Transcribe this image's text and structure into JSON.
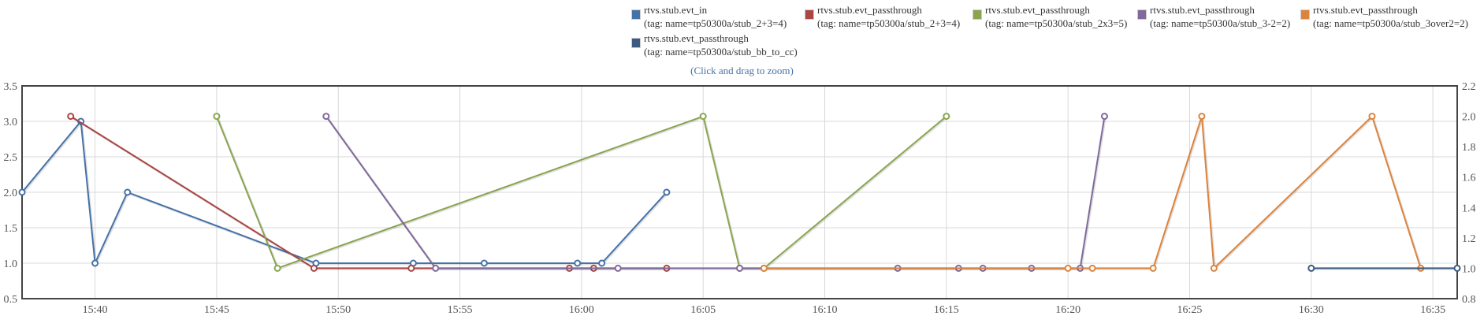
{
  "hint": "(Click and drag to zoom)",
  "chart_data": {
    "type": "line",
    "title": "",
    "xlabel": "",
    "ylabel": "",
    "x_range": [
      "15:37",
      "16:36"
    ],
    "x_ticks": [
      "15:40",
      "15:45",
      "15:50",
      "15:55",
      "16:00",
      "16:05",
      "16:10",
      "16:15",
      "16:20",
      "16:25",
      "16:30",
      "16:35"
    ],
    "y_left": {
      "range": [
        0.5,
        3.5
      ],
      "ticks": [
        "0.5",
        "1.0",
        "1.5",
        "2.0",
        "2.5",
        "3.0",
        "3.5"
      ]
    },
    "y_right": {
      "range": [
        0.8,
        2.2
      ],
      "ticks": [
        "0.8",
        "1.0",
        "1.2",
        "1.4",
        "1.6",
        "1.8",
        "2.0",
        "2.2"
      ]
    },
    "grid": true,
    "legend_placement": "top-right",
    "series": [
      {
        "name": "rtvs.stub.evt_in",
        "tag": "(tag: name=tp50300a/stub_2+3=4)",
        "color": "#4572A7",
        "axis": "left",
        "points": [
          [
            "15:37:00",
            2
          ],
          [
            "15:39:25",
            3
          ],
          [
            "15:40:00",
            1
          ],
          [
            "15:41:20",
            2
          ],
          [
            "15:49:05",
            1
          ],
          [
            "15:53:05",
            1
          ],
          [
            "15:56:00",
            1
          ],
          [
            "15:59:50",
            1
          ],
          [
            "16:00:50",
            1
          ],
          [
            "16:03:30",
            2
          ]
        ]
      },
      {
        "name": "rtvs.stub.evt_passthrough",
        "tag": "(tag: name=tp50300a/stub_2+3=4)",
        "color": "#AA4643",
        "axis": "right",
        "points": [
          [
            "15:39:00",
            2
          ],
          [
            "15:49:00",
            1
          ],
          [
            "15:53:00",
            1
          ],
          [
            "15:59:30",
            1
          ],
          [
            "16:00:30",
            1
          ],
          [
            "16:03:30",
            1
          ]
        ]
      },
      {
        "name": "rtvs.stub.evt_passthrough",
        "tag": "(tag: name=tp50300a/stub_2x3=5)",
        "color": "#89A54E",
        "axis": "right",
        "points": [
          [
            "15:45:00",
            2
          ],
          [
            "15:47:30",
            1
          ],
          [
            "16:05:00",
            2
          ],
          [
            "16:06:30",
            1
          ],
          [
            "16:07:30",
            1
          ],
          [
            "16:15:00",
            2
          ]
        ]
      },
      {
        "name": "rtvs.stub.evt_passthrough",
        "tag": "(tag: name=tp50300a/stub_3-2=2)",
        "color": "#80699B",
        "axis": "right",
        "points": [
          [
            "15:49:30",
            2
          ],
          [
            "15:54:00",
            1
          ],
          [
            "16:01:30",
            1
          ],
          [
            "16:06:30",
            1
          ],
          [
            "16:13:00",
            1
          ],
          [
            "16:15:30",
            1
          ],
          [
            "16:16:30",
            1
          ],
          [
            "16:18:30",
            1
          ],
          [
            "16:20:30",
            1
          ],
          [
            "16:21:30",
            2
          ]
        ]
      },
      {
        "name": "rtvs.stub.evt_passthrough",
        "tag": "(tag: name=tp50300a/stub_3over2=2)",
        "color": "#DB843D",
        "axis": "right",
        "points": [
          [
            "16:07:30",
            1
          ],
          [
            "16:20:00",
            1
          ],
          [
            "16:21:00",
            1
          ],
          [
            "16:23:30",
            1
          ],
          [
            "16:25:30",
            2
          ],
          [
            "16:26:00",
            1
          ],
          [
            "16:32:30",
            2
          ],
          [
            "16:34:30",
            1
          ]
        ]
      },
      {
        "name": "rtvs.stub.evt_passthrough",
        "tag": "(tag: name=tp50300a/stub_bb_to_cc)",
        "color": "#3D5A80",
        "axis": "right",
        "points": [
          [
            "16:30:00",
            1
          ],
          [
            "16:36:00",
            1
          ]
        ]
      }
    ]
  }
}
